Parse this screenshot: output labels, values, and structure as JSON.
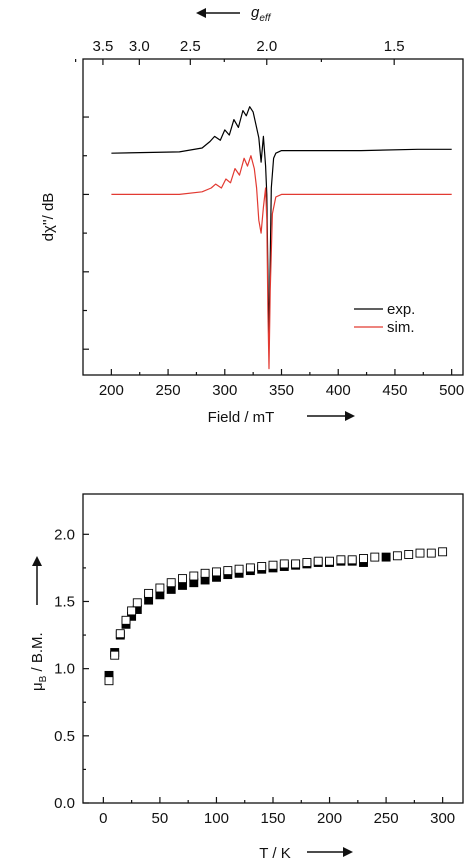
{
  "chart_data": [
    {
      "type": "line",
      "xlabel": "Field / mT",
      "ylabel": "dχ''/ dB",
      "top_axis_label": "g",
      "top_axis_label_sub": "eff",
      "xlim": [
        175,
        510
      ],
      "ylim": [
        -1.1,
        1.35
      ],
      "x_ticks": [
        200,
        250,
        300,
        350,
        400,
        450,
        500
      ],
      "top_ticks": [
        {
          "g": 3.5,
          "label": "3.5"
        },
        {
          "g": 3.0,
          "label": "3.0"
        },
        {
          "g": 2.5,
          "label": "2.5"
        },
        {
          "g": 2.0,
          "label": "2.0"
        },
        {
          "g": 1.5,
          "label": "1.5"
        }
      ],
      "legend": {
        "position": "bottom-right"
      },
      "series": [
        {
          "name": "exp.",
          "color": "#000000",
          "x": [
            200,
            260,
            280,
            287,
            291,
            296,
            300,
            304,
            308,
            312,
            316,
            319,
            322,
            325,
            327,
            330,
            332,
            334,
            336,
            337,
            338,
            339,
            341,
            343,
            345,
            350,
            370,
            420,
            470,
            500
          ],
          "y": [
            0.62,
            0.63,
            0.66,
            0.71,
            0.75,
            0.72,
            0.8,
            0.76,
            0.88,
            0.82,
            0.95,
            0.91,
            0.98,
            0.94,
            0.86,
            0.74,
            0.55,
            0.75,
            0.52,
            0.3,
            -0.3,
            -0.85,
            0.35,
            0.58,
            0.62,
            0.64,
            0.64,
            0.64,
            0.65,
            0.65
          ]
        },
        {
          "name": "sim.",
          "color": "#e23a32",
          "x": [
            200,
            260,
            280,
            288,
            292,
            297,
            301,
            305,
            309,
            313,
            317,
            320,
            323,
            326,
            328,
            330,
            332,
            334,
            336,
            337,
            338,
            339,
            340,
            342,
            345,
            350,
            370,
            420,
            470,
            500
          ],
          "y": [
            0.3,
            0.3,
            0.32,
            0.35,
            0.38,
            0.35,
            0.42,
            0.39,
            0.5,
            0.45,
            0.58,
            0.52,
            0.6,
            0.5,
            0.35,
            0.1,
            0.0,
            0.2,
            0.35,
            0.1,
            -0.6,
            -1.05,
            -0.45,
            0.15,
            0.28,
            0.3,
            0.3,
            0.3,
            0.3,
            0.3
          ]
        }
      ]
    },
    {
      "type": "scatter",
      "xlabel": "T / K",
      "ylabel": "μ",
      "ylabel_sub": "B",
      "ylabel_suffix": " / B.M.",
      "xlim": [
        -18,
        318
      ],
      "ylim": [
        0.0,
        2.3
      ],
      "x_ticks": [
        0,
        50,
        100,
        150,
        200,
        250,
        300
      ],
      "y_ticks": [
        0.0,
        0.5,
        1.0,
        1.5,
        2.0
      ],
      "series": [
        {
          "name": "",
          "marker": "filled-square",
          "color": "#000000",
          "x": [
            5,
            10,
            15,
            20,
            25,
            30,
            40,
            50,
            60,
            70,
            80,
            90,
            100,
            110,
            120,
            130,
            140,
            150,
            160,
            170,
            180,
            190,
            200,
            210,
            220,
            230,
            250
          ],
          "y": [
            0.95,
            1.12,
            1.25,
            1.33,
            1.39,
            1.44,
            1.51,
            1.55,
            1.59,
            1.62,
            1.64,
            1.66,
            1.68,
            1.7,
            1.71,
            1.73,
            1.74,
            1.75,
            1.76,
            1.77,
            1.78,
            1.79,
            1.79,
            1.8,
            1.8,
            1.79,
            1.83
          ]
        },
        {
          "name": "",
          "marker": "open-square",
          "color": "#000000",
          "x": [
            5,
            10,
            15,
            20,
            25,
            30,
            40,
            50,
            60,
            70,
            80,
            90,
            100,
            110,
            120,
            130,
            140,
            150,
            160,
            170,
            180,
            190,
            200,
            210,
            220,
            230,
            240,
            260,
            270,
            280,
            290,
            300
          ],
          "y": [
            0.91,
            1.1,
            1.26,
            1.36,
            1.43,
            1.49,
            1.56,
            1.6,
            1.64,
            1.67,
            1.69,
            1.71,
            1.72,
            1.73,
            1.74,
            1.75,
            1.76,
            1.77,
            1.78,
            1.78,
            1.79,
            1.8,
            1.8,
            1.81,
            1.81,
            1.82,
            1.83,
            1.84,
            1.85,
            1.86,
            1.86,
            1.87
          ]
        }
      ]
    }
  ]
}
